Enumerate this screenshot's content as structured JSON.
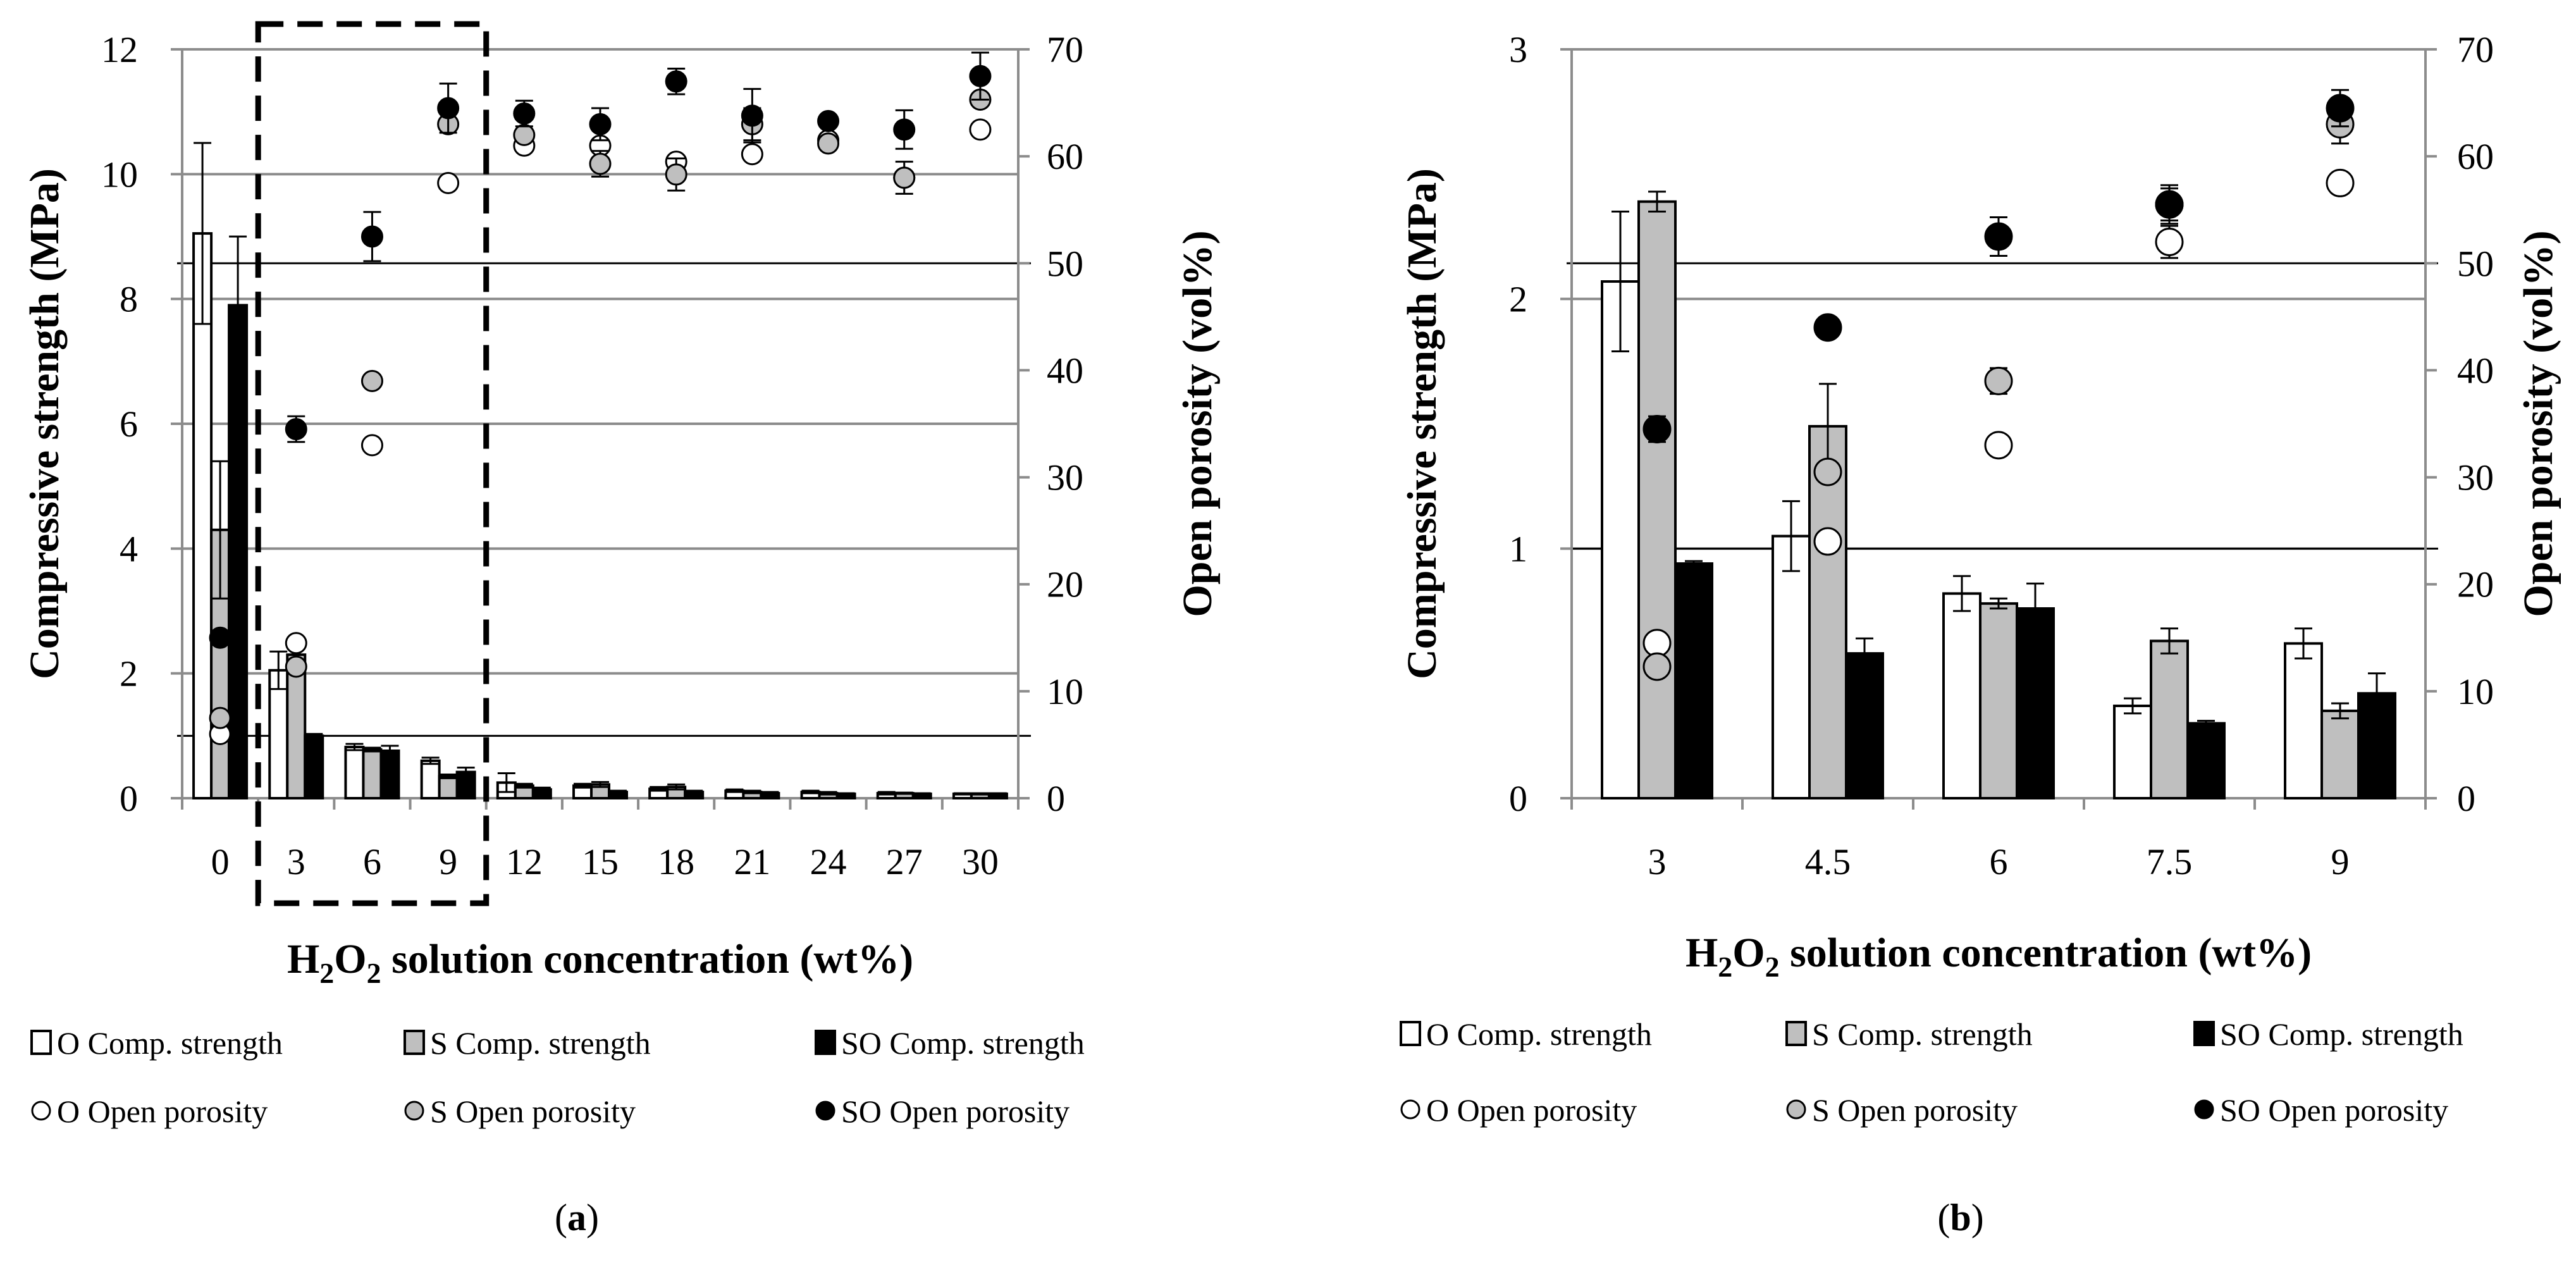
{
  "charts": [
    {
      "id": "a",
      "type": "bar",
      "panel_label": "a",
      "title": "",
      "xlabel_prefix": "H",
      "xlabel_sub1": "2",
      "xlabel_mid": "O",
      "xlabel_sub2": "2",
      "xlabel_suffix": " solution concentration (wt%)",
      "ylabel": "Compressive strength (MPa)",
      "y2label": "Open porosity (vol%)",
      "ylim": [
        0,
        12
      ],
      "y2lim": [
        0,
        70
      ],
      "yticks": [
        "0",
        "2",
        "4",
        "6",
        "8",
        "10",
        "12"
      ],
      "y2ticks": [
        "0",
        "10",
        "20",
        "30",
        "40",
        "50",
        "60",
        "70"
      ],
      "categories": [
        "0",
        "3",
        "6",
        "9",
        "12",
        "15",
        "18",
        "21",
        "24",
        "27",
        "30"
      ],
      "reference_lines": [
        {
          "axis": "y2",
          "value": 50
        },
        {
          "axis": "y",
          "value": 1
        }
      ],
      "highlight_box": {
        "from_category": "3",
        "to_category": "9",
        "style": "dashed"
      },
      "series": [
        {
          "name": "O Comp. strength",
          "kind": "bar",
          "color": "#ffffff",
          "values": [
            9.05,
            2.05,
            0.82,
            0.6,
            0.25,
            0.2,
            0.15,
            0.12,
            0.1,
            0.08,
            0.07
          ],
          "errors": [
            1.45,
            0.3,
            0.05,
            0.05,
            0.15,
            0.03,
            0.03,
            0.02,
            0.02,
            0.02,
            0.01
          ]
        },
        {
          "name": "S Comp. strength",
          "kind": "bar",
          "color": "#bfbfbf",
          "values": [
            4.3,
            2.3,
            0.78,
            0.35,
            0.2,
            0.22,
            0.18,
            0.1,
            0.08,
            0.08,
            0.07
          ],
          "errors": [
            1.1,
            0.1,
            0.03,
            0.03,
            0.03,
            0.04,
            0.04,
            0.02,
            0.02,
            0.01,
            0.01
          ]
        },
        {
          "name": "SO Comp. strength",
          "kind": "bar",
          "color": "#000000",
          "values": [
            7.9,
            1.0,
            0.76,
            0.42,
            0.14,
            0.1,
            0.1,
            0.08,
            0.07,
            0.07,
            0.07
          ],
          "errors": [
            1.1,
            0.03,
            0.08,
            0.07,
            0.03,
            0.02,
            0.02,
            0.02,
            0.01,
            0.01,
            0.01
          ]
        },
        {
          "name": "O Open porosity",
          "kind": "scatter",
          "axis": "y2",
          "color": "#ffffff",
          "values": [
            6,
            14.5,
            33,
            57.5,
            61,
            61,
            59.5,
            60.2,
            61.5,
            58,
            62.5
          ],
          "errors": [
            0,
            0,
            0,
            0,
            0,
            0,
            0,
            0,
            0,
            0,
            0
          ]
        },
        {
          "name": "S Open porosity",
          "kind": "scatter",
          "axis": "y2",
          "color": "#bfbfbf",
          "values": [
            7.5,
            12.3,
            39,
            63,
            62,
            59.3,
            58.3,
            63,
            61.2,
            58,
            65.3
          ],
          "errors": [
            0,
            0,
            0,
            0,
            0,
            1.2,
            1.5,
            1.5,
            0,
            1.5,
            0
          ]
        },
        {
          "name": "SO Open porosity",
          "kind": "scatter",
          "axis": "y2",
          "color": "#000000",
          "values": [
            15,
            34.5,
            52.5,
            64.5,
            64,
            63,
            67,
            63.8,
            63.3,
            62.5,
            67.5
          ],
          "errors": [
            0,
            1.2,
            2.3,
            2.3,
            1.2,
            1.5,
            1.2,
            2.5,
            0,
            1.8,
            2.2
          ]
        }
      ]
    },
    {
      "id": "b",
      "type": "bar",
      "panel_label": "b",
      "title": "",
      "xlabel_prefix": "H",
      "xlabel_sub1": "2",
      "xlabel_mid": "O",
      "xlabel_sub2": "2",
      "xlabel_suffix": " solution concentration (wt%)",
      "ylabel": "Compressive strength (MPa)",
      "y2label": "Open porosity (vol%)",
      "ylim": [
        0,
        3
      ],
      "y2lim": [
        0,
        70
      ],
      "yticks": [
        "0",
        "1",
        "2",
        "3"
      ],
      "y2ticks": [
        "0",
        "10",
        "20",
        "30",
        "40",
        "50",
        "60",
        "70"
      ],
      "categories": [
        "3",
        "4.5",
        "6",
        "7.5",
        "9"
      ],
      "reference_lines": [
        {
          "axis": "y2",
          "value": 50
        },
        {
          "axis": "y",
          "value": 1
        }
      ],
      "series": [
        {
          "name": "O Comp. strength",
          "kind": "bar",
          "color": "#ffffff",
          "values": [
            2.07,
            1.05,
            0.82,
            0.37,
            0.62
          ],
          "errors": [
            0.28,
            0.14,
            0.07,
            0.03,
            0.06
          ]
        },
        {
          "name": "S Comp. strength",
          "kind": "bar",
          "color": "#bfbfbf",
          "values": [
            2.39,
            1.49,
            0.78,
            0.63,
            0.35
          ],
          "errors": [
            0.04,
            0.17,
            0.02,
            0.05,
            0.03
          ]
        },
        {
          "name": "SO Comp. strength",
          "kind": "bar",
          "color": "#000000",
          "values": [
            0.94,
            0.58,
            0.76,
            0.3,
            0.42
          ],
          "errors": [
            0.01,
            0.06,
            0.1,
            0.01,
            0.08
          ]
        },
        {
          "name": "O Open porosity",
          "kind": "scatter",
          "axis": "y2",
          "color": "#ffffff",
          "values": [
            14.5,
            24,
            33,
            52,
            57.5
          ],
          "errors": [
            0,
            0,
            0,
            1.5,
            0
          ]
        },
        {
          "name": "S Open porosity",
          "kind": "scatter",
          "axis": "y2",
          "color": "#bfbfbf",
          "values": [
            12.3,
            30.5,
            39,
            55.5,
            63
          ],
          "errors": [
            0,
            0,
            1.2,
            1.8,
            1.8
          ]
        },
        {
          "name": "SO Open porosity",
          "kind": "scatter",
          "axis": "y2",
          "color": "#000000",
          "values": [
            34.5,
            44,
            52.5,
            55.5,
            64.5
          ],
          "errors": [
            1.2,
            0,
            1.8,
            1.5,
            1.7
          ]
        }
      ]
    }
  ]
}
